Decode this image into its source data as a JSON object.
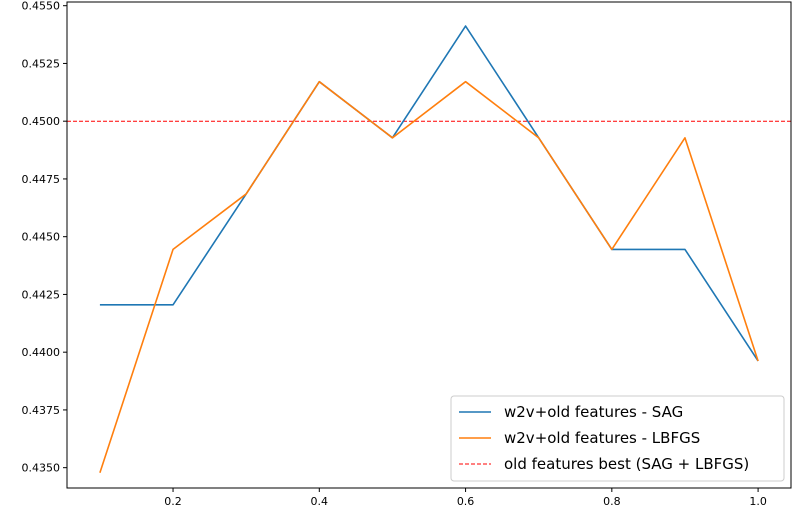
{
  "chart_data": {
    "type": "line",
    "x": [
      0.1,
      0.2,
      0.3,
      0.4,
      0.5,
      0.6,
      0.7,
      0.8,
      0.9,
      1.0
    ],
    "series": [
      {
        "name": "w2v+old features - SAG",
        "color": "#1f77b4",
        "style": "solid",
        "values": [
          0.44205,
          0.44205,
          0.44685,
          0.45171,
          0.44928,
          0.45412,
          0.44928,
          0.44445,
          0.44445,
          0.43962
        ]
      },
      {
        "name": "w2v+old features - LBFGS",
        "color": "#ff7f0e",
        "style": "solid",
        "values": [
          0.43478,
          0.44445,
          0.44685,
          0.45171,
          0.44928,
          0.45171,
          0.44928,
          0.44445,
          0.44928,
          0.43962
        ]
      }
    ],
    "reference_lines": [
      {
        "name": "old features best (SAG + LBFGS)",
        "orientation": "horizontal",
        "y": 0.45,
        "color": "#ff0000",
        "style": "dashed"
      }
    ],
    "x_ticks": [
      0.2,
      0.4,
      0.6,
      0.8,
      1.0
    ],
    "x_tick_labels": [
      "0.2",
      "0.4",
      "0.6",
      "0.8",
      "1.0"
    ],
    "y_ticks": [
      0.435,
      0.4375,
      0.44,
      0.4425,
      0.445,
      0.4475,
      0.45,
      0.4525,
      0.455
    ],
    "y_tick_labels": [
      "0.4350",
      "0.4375",
      "0.4400",
      "0.4425",
      "0.4450",
      "0.4475",
      "0.4500",
      "0.4525",
      "0.4550"
    ],
    "xlim": [
      0.055,
      1.045
    ],
    "ylim": [
      0.43412,
      0.45516
    ],
    "legend_position": "lower-right",
    "grid": false,
    "title": "",
    "xlabel": "",
    "ylabel": ""
  }
}
